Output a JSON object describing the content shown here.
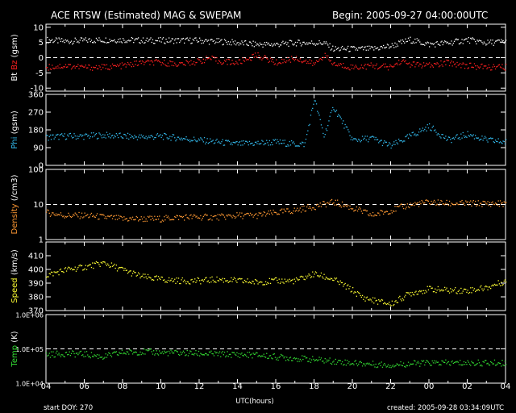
{
  "title_left": "ACE RTSW (Estimated) MAG & SWEPAM",
  "title_right": "Begin: 2005-09-27 04:00:00UTC",
  "footer_left": "start DOY: 270",
  "footer_right": "created: 2005-09-28 03:34:09UTC",
  "colors": {
    "bt": "#ffffff",
    "bz": "#ff2020",
    "phi": "#33bbee",
    "density": "#ff9933",
    "speed": "#ffff33",
    "temp": "#33dd33"
  },
  "chart_data": {
    "type": "scatter",
    "xlabel": "UTC(hours)",
    "x_ticks": [
      "04",
      "06",
      "08",
      "10",
      "12",
      "14",
      "16",
      "18",
      "20",
      "22",
      "00",
      "02",
      "04"
    ],
    "grid": false,
    "panels": [
      {
        "id": "mag",
        "ylabel_parts": [
          "Bt",
          "Bz",
          "(gsm)"
        ],
        "scale": "linear",
        "ylim": [
          -11,
          11
        ],
        "ticks": [
          "10",
          "5",
          "0",
          "-5",
          "-10"
        ],
        "tick_values": [
          10,
          5,
          0,
          -5,
          -10
        ],
        "ref_line": 0,
        "series": [
          {
            "name": "Bt",
            "color_key": "bt",
            "x": [
              4,
              5,
              6,
              7,
              8,
              9,
              10,
              11,
              12,
              12.5,
              13,
              14,
              15,
              16,
              17,
              18,
              18.5,
              19,
              20,
              21,
              22,
              22.5,
              23,
              24,
              25,
              26,
              27,
              28
            ],
            "y": [
              6,
              5.5,
              5.8,
              6,
              6,
              5.8,
              5.8,
              5.8,
              5.8,
              5.5,
              5.5,
              5,
              4.5,
              4.5,
              5,
              5,
              5,
              3,
              3,
              3,
              4,
              5,
              6,
              4.5,
              5,
              6,
              5,
              5.5
            ]
          },
          {
            "name": "Bz",
            "color_key": "bz",
            "x": [
              4,
              5,
              6,
              7,
              8,
              9,
              10,
              11,
              12,
              12.5,
              13,
              14,
              15,
              16,
              17,
              18,
              18.5,
              19,
              20,
              21,
              22,
              22.5,
              23,
              24,
              25,
              26,
              27,
              28
            ],
            "y": [
              -3,
              -2.5,
              -3,
              -3,
              -2.5,
              -1.5,
              -1.5,
              -2,
              -1,
              0,
              -1,
              -1.5,
              1,
              -1.5,
              0,
              -2,
              1,
              -2,
              -3,
              -2.5,
              -3,
              -1,
              -2,
              -2.5,
              -1.5,
              -2.5,
              -3,
              -3
            ]
          }
        ]
      },
      {
        "id": "phi",
        "ylabel_parts": [
          "Phi",
          "(gsm)"
        ],
        "scale": "linear",
        "ylim": [
          0,
          360
        ],
        "ticks": [
          "360",
          "270",
          "180",
          "90",
          "0"
        ],
        "tick_values": [
          360,
          270,
          180,
          90,
          0
        ],
        "series": [
          {
            "name": "Phi",
            "color_key": "phi",
            "x": [
              4,
              5,
              6,
              7,
              8,
              9,
              10,
              11,
              12,
              13,
              14,
              15,
              16,
              17,
              17.5,
              18,
              18.5,
              19,
              20,
              21,
              22,
              23,
              24,
              25,
              26,
              27,
              28
            ],
            "y": [
              145,
              150,
              150,
              155,
              150,
              145,
              150,
              140,
              130,
              120,
              110,
              115,
              120,
              110,
              110,
              340,
              150,
              300,
              130,
              140,
              100,
              150,
              200,
              130,
              160,
              130,
              120
            ]
          }
        ]
      },
      {
        "id": "density",
        "ylabel_parts": [
          "Density",
          "(/cm3)"
        ],
        "scale": "log",
        "ylim": [
          1,
          100
        ],
        "ticks": [
          "100",
          "10",
          "1"
        ],
        "tick_values": [
          100,
          10,
          1
        ],
        "ref_line": 10,
        "series": [
          {
            "name": "Density",
            "color_key": "density",
            "x": [
              4,
              5,
              6,
              7,
              8,
              9,
              10,
              11,
              12,
              13,
              14,
              15,
              16,
              17,
              18,
              19,
              20,
              21,
              22,
              23,
              24,
              25,
              26,
              27,
              28
            ],
            "y": [
              6,
              5,
              5,
              4.5,
              4,
              4,
              4,
              4.5,
              4.5,
              4.5,
              5,
              5,
              6,
              7,
              9,
              12,
              8,
              5,
              7,
              10,
              12,
              11,
              11,
              11,
              11
            ]
          }
        ]
      },
      {
        "id": "speed",
        "ylabel_parts": [
          "Speed",
          "(km/s)"
        ],
        "scale": "linear",
        "ylim": [
          370,
          420
        ],
        "ticks": [
          "410",
          "400",
          "390",
          "380",
          "370"
        ],
        "tick_values": [
          410,
          400,
          390,
          380,
          370
        ],
        "series": [
          {
            "name": "Speed",
            "color_key": "speed",
            "x": [
              4,
              5,
              6,
              7,
              8,
              9,
              10,
              11,
              12,
              13,
              14,
              15,
              16,
              17,
              18,
              19,
              20,
              20.5,
              21,
              22,
              23,
              24,
              25,
              26,
              27,
              28
            ],
            "y": [
              396,
              400,
              402,
              405,
              400,
              395,
              393,
              392,
              392,
              393,
              392,
              391,
              392,
              392,
              397,
              393,
              385,
              380,
              378,
              375,
              383,
              386,
              385,
              385,
              387,
              392
            ]
          }
        ]
      },
      {
        "id": "temp",
        "ylabel_parts": [
          "Temp",
          "(K)"
        ],
        "scale": "log",
        "ylim": [
          10000,
          1000000
        ],
        "ticks": [
          "1.0E+06",
          "1.0E+05",
          "1.0E+04"
        ],
        "tick_values": [
          1000000,
          100000,
          10000
        ],
        "ref_line": 100000,
        "series": [
          {
            "name": "Temp",
            "color_key": "temp",
            "x": [
              4,
              5,
              6,
              7,
              8,
              9,
              10,
              11,
              12,
              13,
              14,
              15,
              16,
              17,
              18,
              19,
              20,
              21,
              22,
              23,
              24,
              25,
              26,
              27,
              28
            ],
            "y": [
              70000,
              75000,
              72000,
              60000,
              80000,
              85000,
              80000,
              78000,
              75000,
              72000,
              70000,
              68000,
              60000,
              55000,
              50000,
              45000,
              40000,
              37000,
              35000,
              38000,
              40000,
              40000,
              40000,
              40000,
              40000
            ]
          }
        ]
      }
    ]
  }
}
